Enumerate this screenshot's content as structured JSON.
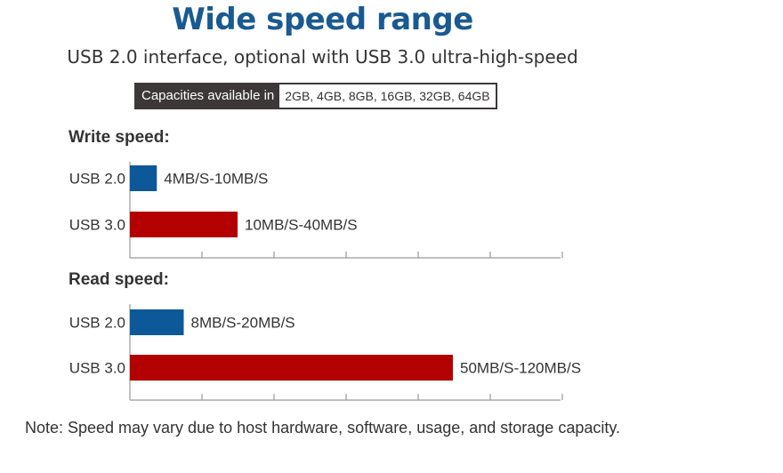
{
  "title": "Wide speed range",
  "subtitle": "USB 2.0 interface, optional with USB 3.0 ultra-high-speed",
  "capacities": {
    "label": "Capacities available in",
    "values": "2GB, 4GB, 8GB, 16GB, 32GB, 64GB"
  },
  "note": "Note: Speed may vary due to host hardware, software, usage, and storage capacity.",
  "colors": {
    "usb2": "#0d5899",
    "usb3": "#b30000",
    "axis": "#9a9a9a"
  },
  "chart_data": [
    {
      "type": "bar",
      "orientation": "horizontal",
      "title": "Write speed:",
      "categories": [
        "USB 2.0",
        "USB 3.0"
      ],
      "values": [
        10,
        40
      ],
      "data_labels": [
        "4MB/S-10MB/S",
        "10MB/S-40MB/S"
      ],
      "unit": "MB/S",
      "xlim": [
        0,
        160
      ],
      "grid": false
    },
    {
      "type": "bar",
      "orientation": "horizontal",
      "title": "Read speed:",
      "categories": [
        "USB 2.0",
        "USB 3.0"
      ],
      "values": [
        20,
        120
      ],
      "data_labels": [
        "8MB/S-20MB/S",
        "50MB/S-120MB/S"
      ],
      "unit": "MB/S",
      "xlim": [
        0,
        160
      ],
      "grid": false
    }
  ]
}
